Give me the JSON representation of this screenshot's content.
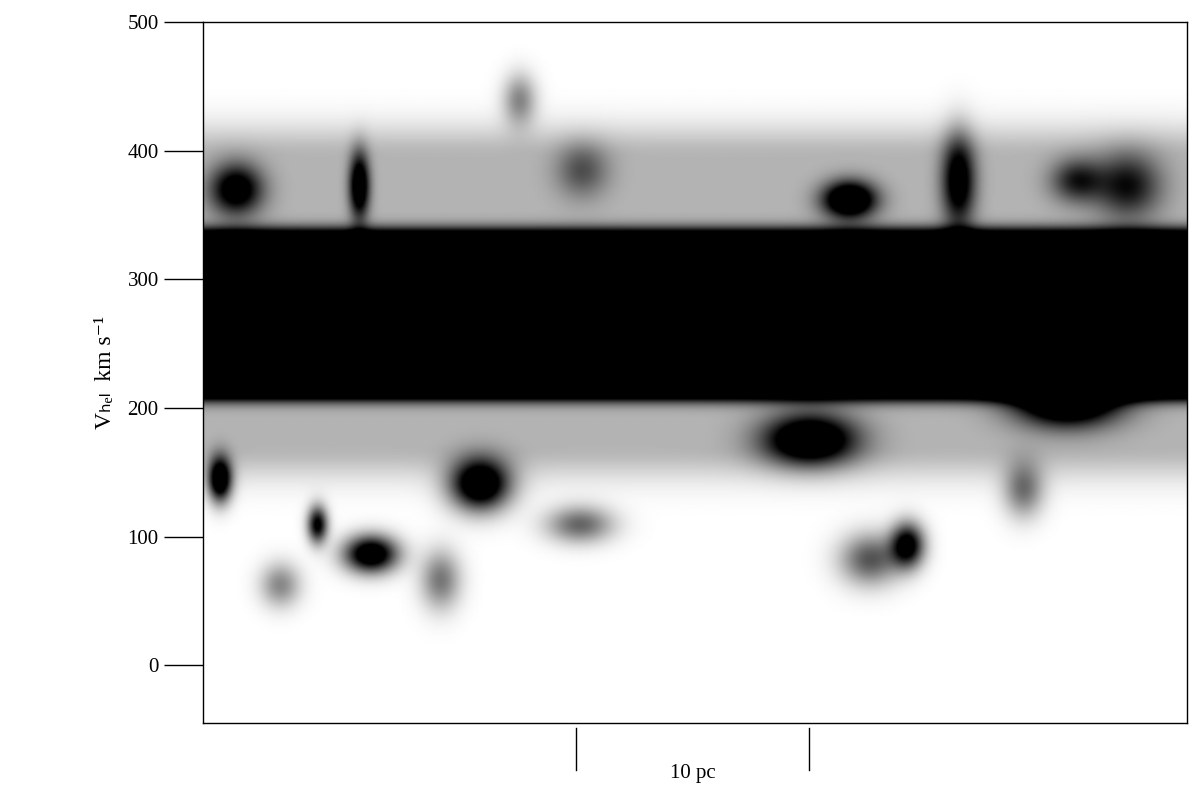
{
  "chart_data": {
    "type": "image",
    "ylabel": "Vₕₑₗ  km s⁻¹",
    "xlim": [
      0,
      42.3
    ],
    "ylim": [
      -45,
      500
    ],
    "yticks": [
      0,
      100,
      200,
      300,
      400,
      500
    ],
    "tick_labels": "y",
    "color": "gray_r",
    "scale_bar": {
      "x": [
        16.05,
        26.05
      ],
      "label": "10 pc"
    },
    "band": {
      "v_low": 215,
      "v_high": 330,
      "level": 1.0
    },
    "halo": {
      "v_low": 170,
      "v_high": 395,
      "level": 0.22
    },
    "components": [
      {
        "x": 0.7,
        "v": 144,
        "dx": 0.35,
        "dv": 12,
        "level": 1.0
      },
      {
        "x": 7.2,
        "v": 86,
        "dx": 0.8,
        "dv": 10,
        "level": 1.0
      },
      {
        "x": 11.9,
        "v": 140,
        "dx": 0.9,
        "dv": 14,
        "level": 1.0
      },
      {
        "x": 4.9,
        "v": 109,
        "dx": 0.3,
        "dv": 10,
        "level": 0.8
      },
      {
        "x": 16.2,
        "v": 109,
        "dx": 1.0,
        "dv": 10,
        "level": 0.45
      },
      {
        "x": 26.1,
        "v": 175,
        "dx": 1.4,
        "dv": 14,
        "level": 0.9
      },
      {
        "x": 30.3,
        "v": 93,
        "dx": 0.5,
        "dv": 12,
        "level": 0.85
      },
      {
        "x": 28.7,
        "v": 82,
        "dx": 0.9,
        "dv": 14,
        "level": 0.5
      },
      {
        "x": 27.8,
        "v": 362,
        "dx": 0.8,
        "dv": 10,
        "level": 0.95
      },
      {
        "x": 32.5,
        "v": 377,
        "dx": 0.5,
        "dv": 25,
        "level": 0.7
      },
      {
        "x": 1.4,
        "v": 370,
        "dx": 0.8,
        "dv": 14,
        "level": 0.7
      },
      {
        "x": 6.7,
        "v": 373,
        "dx": 0.3,
        "dv": 18,
        "level": 0.8
      },
      {
        "x": 13.6,
        "v": 440,
        "dx": 0.5,
        "dv": 14,
        "level": 0.35
      },
      {
        "x": 39.8,
        "v": 373,
        "dx": 1.0,
        "dv": 18,
        "level": 0.5
      },
      {
        "x": 37.6,
        "v": 377,
        "dx": 0.8,
        "dv": 12,
        "level": 0.45
      },
      {
        "x": 10.2,
        "v": 66,
        "dx": 0.6,
        "dv": 16,
        "level": 0.4
      },
      {
        "x": 37.2,
        "v": 206,
        "dx": 1.6,
        "dv": 14,
        "level": 1.0
      },
      {
        "x": 16.3,
        "v": 385,
        "dx": 0.8,
        "dv": 15,
        "level": 0.3
      },
      {
        "x": 35.3,
        "v": 136,
        "dx": 0.6,
        "dv": 15,
        "level": 0.4
      },
      {
        "x": 3.3,
        "v": 62,
        "dx": 0.6,
        "dv": 12,
        "level": 0.35
      }
    ]
  }
}
